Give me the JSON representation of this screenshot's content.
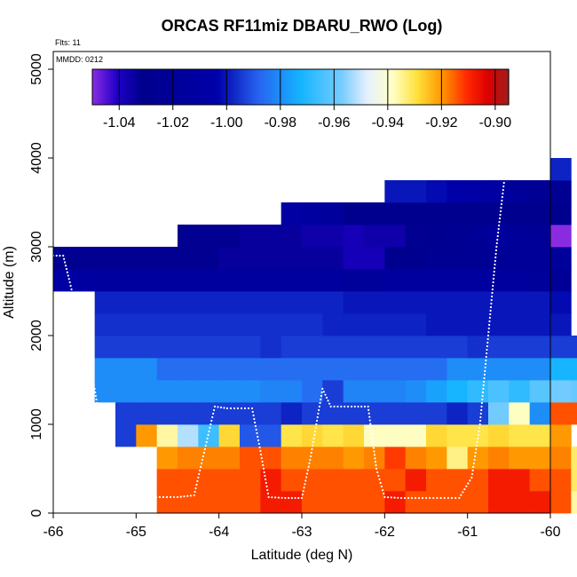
{
  "chart_data": {
    "type": "heatmap",
    "title": "ORCAS RF11miz DBARU_RWO (Log)",
    "xlabel": "Latitude (deg N)",
    "ylabel": "Altitude (m)",
    "xlim": [
      -66,
      -60
    ],
    "ylim": [
      0,
      5200
    ],
    "xticks": [
      -66,
      -65,
      -64,
      -63,
      -62,
      -61,
      -60
    ],
    "xtick_labels": [
      "-66",
      "-65",
      "-64",
      "-63",
      "-62",
      "-61",
      "-60"
    ],
    "yticks": [
      0,
      1000,
      2000,
      3000,
      4000,
      5000
    ],
    "ytick_labels": [
      "0",
      "1000",
      "2000",
      "3000",
      "4000",
      "5000"
    ],
    "annotations": {
      "flights": "Flts: 11",
      "date": "MMDD: 0212"
    },
    "colorbar": {
      "min": -1.05,
      "max": -0.895,
      "ticks": [
        -1.04,
        -1.02,
        -1.0,
        -0.98,
        -0.96,
        -0.94,
        -0.92,
        -0.9
      ],
      "tick_labels": [
        "-1.04",
        "-1.02",
        "-1.00",
        "-0.98",
        "-0.96",
        "-0.94",
        "-0.92",
        "-0.90"
      ]
    },
    "grid": {
      "lat_start": -66,
      "lat_step": 0.25,
      "alt_start": 0,
      "alt_step": 250
    },
    "rows": [
      {
        "alt": 0,
        "c0": 5,
        "vals": [
          -0.914,
          -0.914,
          -0.914,
          -0.914,
          -0.914,
          -0.908,
          -0.908,
          -0.914,
          -0.914,
          -0.914,
          -0.914,
          -0.908,
          -0.914,
          -0.914,
          -0.914,
          -0.914,
          -0.908,
          -0.908,
          -0.908,
          -0.914,
          -0.936
        ]
      },
      {
        "alt": 250,
        "c0": 5,
        "vals": [
          -0.914,
          -0.914,
          -0.914,
          -0.914,
          -0.914,
          -0.908,
          -0.914,
          -0.914,
          -0.914,
          -0.914,
          -0.914,
          -0.914,
          -0.908,
          -0.914,
          -0.914,
          -0.914,
          -0.908,
          -0.908,
          -0.914,
          -0.914,
          -0.932
        ]
      },
      {
        "alt": 500,
        "c0": 5,
        "vals": [
          -0.92,
          -0.918,
          -0.918,
          -0.918,
          -0.914,
          -0.914,
          -0.918,
          -0.918,
          -0.918,
          -0.92,
          -0.918,
          -0.912,
          -0.918,
          -0.92,
          -0.934,
          -0.92,
          -0.918,
          -0.92,
          -0.92,
          -0.918,
          -0.932
        ]
      },
      {
        "alt": 750,
        "c0": 3,
        "vals": [
          -0.994,
          -0.92,
          -0.936,
          -0.952,
          -0.966,
          -0.928,
          -0.99,
          -0.99,
          -0.93,
          -0.928,
          -0.93,
          -0.928,
          -0.938,
          -0.938,
          -0.938,
          -0.928,
          -0.93,
          -0.93,
          -0.928,
          -0.93,
          -0.93,
          -0.92
        ]
      },
      {
        "alt": 1000,
        "c0": 3,
        "vals": [
          -0.994,
          -0.994,
          -0.994,
          -0.994,
          -0.994,
          -0.994,
          -0.994,
          -0.994,
          -0.998,
          -0.994,
          -0.994,
          -0.994,
          -0.994,
          -0.994,
          -0.994,
          -0.994,
          -0.998,
          -0.994,
          -0.958,
          -0.938,
          -0.98,
          -0.914,
          -0.914
        ]
      },
      {
        "alt": 1250,
        "c0": 2,
        "vals": [
          -0.98,
          -0.98,
          -0.98,
          -0.98,
          -0.98,
          -0.98,
          -0.98,
          -0.98,
          -0.982,
          -0.982,
          -0.986,
          -0.994,
          -0.982,
          -0.982,
          -0.982,
          -0.98,
          -0.976,
          -0.972,
          -0.968,
          -0.964,
          -0.968,
          -0.962,
          -0.958,
          -0.96
        ]
      },
      {
        "alt": 1500,
        "c0": 2,
        "vals": [
          -0.98,
          -0.98,
          -0.98,
          -0.986,
          -0.986,
          -0.986,
          -0.986,
          -0.986,
          -0.986,
          -0.986,
          -0.986,
          -0.986,
          -0.986,
          -0.986,
          -0.986,
          -0.986,
          -0.986,
          -0.98,
          -0.98,
          -0.98,
          -0.98,
          -0.98,
          -0.972,
          -0.972
        ]
      },
      {
        "alt": 1750,
        "c0": 2,
        "vals": [
          -0.994,
          -0.994,
          -0.994,
          -0.994,
          -0.994,
          -0.994,
          -0.994,
          -0.994,
          -0.996,
          -0.994,
          -0.994,
          -0.994,
          -0.994,
          -0.994,
          -0.994,
          -0.994,
          -0.994,
          -0.994,
          -0.996,
          -0.994,
          -0.994,
          -0.994,
          -0.994,
          -0.994
        ]
      },
      {
        "alt": 2000,
        "c0": 2,
        "vals": [
          -0.996,
          -0.996,
          -0.996,
          -0.996,
          -0.996,
          -0.996,
          -0.996,
          -0.996,
          -0.996,
          -0.996,
          -0.996,
          -0.998,
          -0.998,
          -0.998,
          -0.998,
          -0.998,
          -1.0,
          -1.0,
          -1.0,
          -1.0,
          -1.0,
          -1.0,
          -1.0
        ]
      },
      {
        "alt": 2250,
        "c0": 2,
        "vals": [
          -0.998,
          -0.998,
          -0.998,
          -0.998,
          -0.998,
          -0.998,
          -0.998,
          -0.998,
          -0.998,
          -0.998,
          -0.998,
          -0.998,
          -1.0,
          -1.0,
          -1.0,
          -1.0,
          -1.0,
          -1.0,
          -1.0,
          -1.0,
          -1.0,
          -1.0,
          -1.002
        ]
      },
      {
        "alt": 2500,
        "c0": 0,
        "vals": [
          -1.01,
          -1.012,
          -1.014,
          -1.014,
          -1.014,
          -1.014,
          -1.014,
          -1.014,
          -1.014,
          -1.014,
          -1.014,
          -1.014,
          -1.014,
          -1.014,
          -1.018,
          -1.018,
          -1.014,
          -1.014,
          -1.014,
          -1.014,
          -1.014,
          -1.014,
          -1.014,
          -1.018,
          -1.022
        ]
      },
      {
        "alt": 2750,
        "c0": 0,
        "vals": [
          -1.032,
          -1.032,
          -1.032,
          -1.032,
          -1.032,
          -1.032,
          -1.032,
          -1.032,
          -1.034,
          -1.034,
          -1.034,
          -1.034,
          -1.034,
          -1.034,
          -1.038,
          -1.038,
          -1.03,
          -1.03,
          -1.026,
          -1.026,
          -1.024,
          -1.022,
          -1.02,
          -1.02,
          -1.018
        ]
      },
      {
        "alt": 3000,
        "c0": 6,
        "vals": [
          -1.032,
          -1.032,
          -1.032,
          -1.034,
          -1.034,
          -1.034,
          -1.036,
          -1.036,
          -1.038,
          -1.036,
          -1.036,
          -1.032,
          -1.028,
          -1.026,
          -1.022,
          -1.016,
          -1.02,
          -1.022,
          -1.05
        ]
      },
      {
        "alt": 3250,
        "c0": 11,
        "vals": [
          -1.01,
          -1.012,
          -1.016,
          -1.03,
          -1.03,
          -1.03,
          -1.03,
          -1.03,
          -1.03,
          -1.03,
          -1.03,
          -1.03,
          -1.03,
          -1.03
        ]
      },
      {
        "alt": 3500,
        "c0": 16,
        "vals": [
          -1.0,
          -1.0,
          -1.002,
          -1.004,
          -1.008,
          -1.01,
          -1.02,
          -1.024,
          -1.026
        ]
      },
      {
        "alt": 3750,
        "c0": 24,
        "vals": [
          -0.998
        ]
      }
    ],
    "flight_track": [
      [
        -66.0,
        2900
      ],
      [
        -65.88,
        2900
      ],
      [
        -65.8,
        2600
      ],
      [
        -65.65,
        2000
      ],
      [
        -65.5,
        1400
      ],
      [
        -65.4,
        800
      ],
      [
        -65.3,
        450
      ],
      [
        -65.2,
        220
      ],
      [
        -65.05,
        180
      ],
      [
        -64.8,
        180
      ],
      [
        -64.5,
        180
      ],
      [
        -64.3,
        200
      ],
      [
        -64.2,
        600
      ],
      [
        -64.05,
        1200
      ],
      [
        -63.9,
        1180
      ],
      [
        -63.6,
        1180
      ],
      [
        -63.5,
        700
      ],
      [
        -63.4,
        180
      ],
      [
        -63.2,
        170
      ],
      [
        -63.0,
        170
      ],
      [
        -62.9,
        600
      ],
      [
        -62.75,
        1400
      ],
      [
        -62.65,
        1200
      ],
      [
        -62.4,
        1200
      ],
      [
        -62.2,
        1200
      ],
      [
        -62.1,
        500
      ],
      [
        -62.0,
        180
      ],
      [
        -61.8,
        170
      ],
      [
        -61.5,
        170
      ],
      [
        -61.1,
        170
      ],
      [
        -60.95,
        400
      ],
      [
        -60.85,
        1000
      ],
      [
        -60.75,
        2000
      ],
      [
        -60.65,
        3000
      ],
      [
        -60.55,
        3800
      ],
      [
        -60.52,
        4000
      ]
    ]
  }
}
